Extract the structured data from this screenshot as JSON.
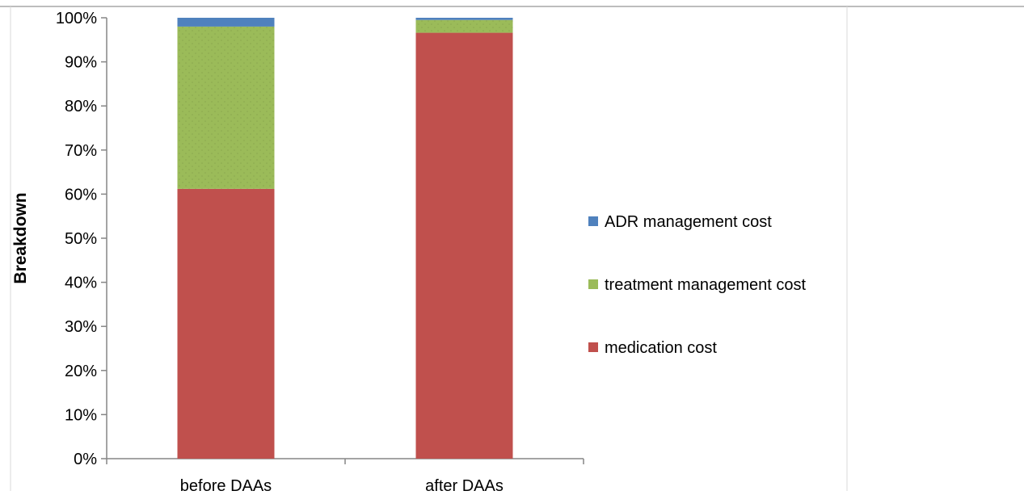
{
  "chart_data": {
    "type": "bar",
    "stacked": true,
    "categories": [
      "before DAAs",
      "after DAAs"
    ],
    "series": [
      {
        "name": "medication cost",
        "color": "#c0504d",
        "values": [
          61.2,
          96.6
        ]
      },
      {
        "name": "treatment management cost",
        "color": "#9bbb59",
        "values": [
          36.8,
          2.9
        ]
      },
      {
        "name": "ADR management cost",
        "color": "#4f81bd",
        "values": [
          2.0,
          0.5
        ]
      }
    ],
    "title": "",
    "xlabel": "",
    "ylabel": "Breakdown",
    "ylim": [
      0,
      100
    ],
    "yticks": [
      "0%",
      "10%",
      "20%",
      "30%",
      "40%",
      "50%",
      "60%",
      "70%",
      "80%",
      "90%",
      "100%"
    ],
    "legend_order": [
      "ADR management cost",
      "treatment management cost",
      "medication cost"
    ],
    "legend_position": "right",
    "grid": false
  }
}
